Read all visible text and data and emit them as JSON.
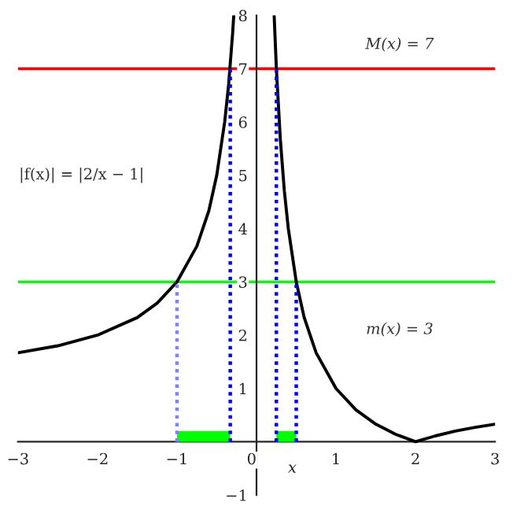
{
  "chart_data": {
    "type": "line",
    "xlabel": "x",
    "xlim": [
      -3,
      3
    ],
    "ylim": [
      -1,
      8
    ],
    "xticks": [
      -3,
      -2,
      -1,
      0,
      1,
      2,
      3
    ],
    "yticks": [
      -1,
      1,
      2,
      3,
      4,
      5,
      6,
      7,
      8
    ],
    "annotations": [
      "|f(x)| = |2/x − 1|"
    ],
    "series": [
      {
        "color": "#000000",
        "x": [
          -3,
          -2.5,
          -2,
          -1.5,
          -1.25,
          -1,
          -0.75,
          -0.6,
          -0.5,
          -0.4,
          -0.35,
          -0.3,
          -0.286,
          0,
          0.222,
          0.25,
          0.3,
          0.35,
          0.4,
          0.5,
          0.6,
          0.75,
          1,
          1.25,
          1.5,
          1.75,
          2,
          2.25,
          2.5,
          2.75,
          3
        ],
        "values": [
          1.67,
          1.8,
          2,
          2.33,
          2.6,
          3,
          3.67,
          4.33,
          5,
          6,
          6.71,
          7.67,
          8,
          null,
          8,
          7,
          5.67,
          4.71,
          4,
          3,
          2.33,
          1.67,
          1,
          0.6,
          0.33,
          0.14,
          0,
          0.11,
          0.2,
          0.27,
          0.33
        ]
      },
      {
        "color": "#8080ff",
        "line_style": "dotted",
        "x": [
          -1,
          -1
        ],
        "values": [
          0,
          3
        ]
      },
      {
        "color": "#0000ff",
        "line_style": "dotted",
        "x": [
          -0.33,
          -0.33
        ],
        "values": [
          0,
          7
        ]
      },
      {
        "color": "#0000ff",
        "line_style": "dotted",
        "x": [
          0.25,
          0.25
        ],
        "values": [
          0,
          7
        ]
      },
      {
        "color": "#0000ff",
        "line_style": "dotted",
        "x": [
          0.5,
          0.5
        ],
        "values": [
          0,
          3
        ]
      },
      {
        "type": "area",
        "color": "#00ff00",
        "x": [
          -1,
          -0.33
        ],
        "values": [
          0.2,
          0.2
        ]
      },
      {
        "type": "area",
        "color": "#00ff00",
        "x": [
          0.25,
          0.5
        ],
        "values": [
          0.2,
          0.2
        ]
      }
    ],
    "ref_lines": [
      {
        "axis": "y",
        "value": 7,
        "label": "M(x) = 7",
        "color": "#ff0000"
      },
      {
        "axis": "y",
        "value": 3,
        "label": "m(x) = 3",
        "color": "#00ff00"
      }
    ],
    "grid": false,
    "legend": false
  }
}
